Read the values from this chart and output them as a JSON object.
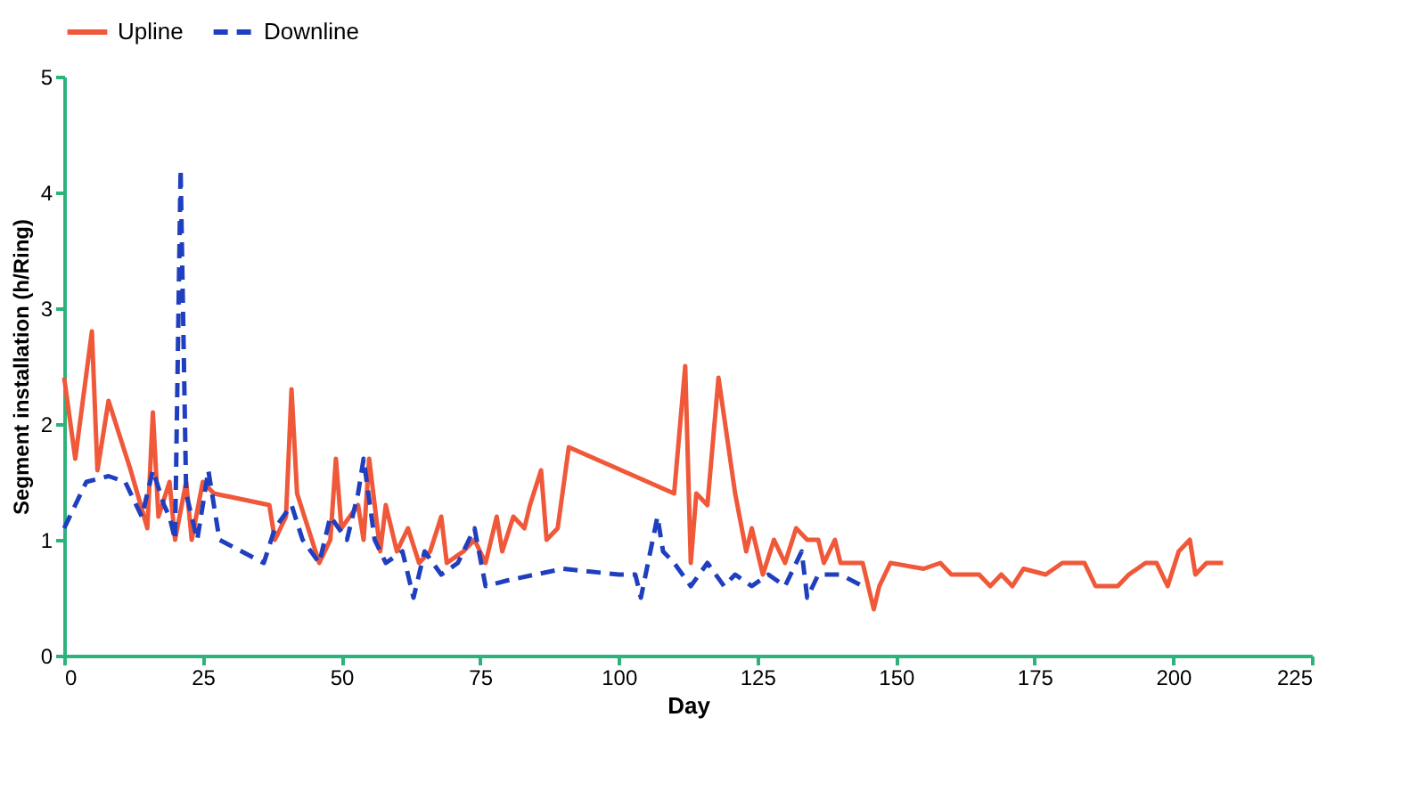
{
  "chart_data": {
    "type": "line",
    "xlabel": "Day",
    "ylabel": "Segment installation (h/Ring)",
    "xlim": [
      0,
      225
    ],
    "xticks": [
      0,
      25,
      50,
      75,
      100,
      125,
      150,
      175,
      200,
      225
    ],
    "ylim": [
      0,
      5
    ],
    "yticks": [
      0,
      1,
      2,
      3,
      4,
      5
    ],
    "grid": false,
    "legend": "top",
    "marker": "none",
    "series": [
      {
        "name": "Upline",
        "color": "#f0583a",
        "line_style": "solid",
        "x": [
          0,
          2,
          5,
          6,
          8,
          12,
          15,
          16,
          17,
          19,
          20,
          22,
          23,
          25,
          27,
          37,
          38,
          40,
          41,
          42,
          44,
          46,
          48,
          49,
          50,
          53,
          54,
          55,
          57,
          58,
          60,
          62,
          64,
          66,
          68,
          69,
          72,
          74,
          76,
          78,
          79,
          81,
          83,
          84,
          86,
          87,
          89,
          91,
          110,
          112,
          113,
          114,
          116,
          118,
          121,
          123,
          124,
          126,
          128,
          130,
          132,
          134,
          136,
          137,
          139,
          140,
          144,
          146,
          147,
          149,
          155,
          158,
          160,
          165,
          167,
          169,
          171,
          173,
          177,
          180,
          184,
          186,
          190,
          192,
          195,
          197,
          199,
          201,
          203,
          204,
          206,
          209
        ],
        "values": [
          2.4,
          1.7,
          2.8,
          1.6,
          2.2,
          1.6,
          1.1,
          2.1,
          1.2,
          1.5,
          1.0,
          1.5,
          1.0,
          1.5,
          1.4,
          1.3,
          1.0,
          1.2,
          2.3,
          1.4,
          1.1,
          0.8,
          1.0,
          1.7,
          1.1,
          1.3,
          1.0,
          1.7,
          0.9,
          1.3,
          0.9,
          1.1,
          0.8,
          0.9,
          1.2,
          0.8,
          0.9,
          1.0,
          0.8,
          1.2,
          0.9,
          1.2,
          1.1,
          1.3,
          1.6,
          1.0,
          1.1,
          1.8,
          1.4,
          2.5,
          0.8,
          1.4,
          1.3,
          2.4,
          1.4,
          0.9,
          1.1,
          0.7,
          1.0,
          0.8,
          1.1,
          1.0,
          1.0,
          0.8,
          1.0,
          0.8,
          0.8,
          0.4,
          0.6,
          0.8,
          0.75,
          0.8,
          0.7,
          0.7,
          0.6,
          0.7,
          0.6,
          0.75,
          0.7,
          0.8,
          0.8,
          0.6,
          0.6,
          0.7,
          0.8,
          0.8,
          0.6,
          0.9,
          1.0,
          0.7,
          0.8,
          0.8
        ]
      },
      {
        "name": "Downline",
        "color": "#1f3fbf",
        "line_style": "dashed",
        "x": [
          0,
          2,
          4,
          8,
          11,
          14,
          16,
          18,
          19,
          20,
          21,
          22,
          23,
          24,
          26,
          28,
          32,
          36,
          38,
          41,
          43,
          46,
          48,
          51,
          53,
          54,
          56,
          58,
          61,
          63,
          65,
          68,
          71,
          74,
          76,
          80,
          90,
          100,
          103,
          104,
          107,
          108,
          110,
          113,
          116,
          119,
          121,
          124,
          127,
          130,
          133,
          134,
          136,
          140,
          144
        ],
        "values": [
          1.1,
          1.3,
          1.5,
          1.55,
          1.5,
          1.2,
          1.6,
          1.3,
          1.2,
          1.0,
          4.2,
          1.4,
          1.2,
          1.0,
          1.6,
          1.0,
          0.9,
          0.8,
          1.1,
          1.3,
          1.0,
          0.8,
          1.2,
          1.0,
          1.4,
          1.7,
          1.0,
          0.8,
          0.9,
          0.5,
          0.9,
          0.7,
          0.8,
          1.1,
          0.6,
          0.65,
          0.75,
          0.7,
          0.7,
          0.5,
          1.2,
          0.9,
          0.8,
          0.6,
          0.8,
          0.6,
          0.7,
          0.6,
          0.7,
          0.6,
          0.9,
          0.5,
          0.7,
          0.7,
          0.6
        ]
      }
    ]
  }
}
